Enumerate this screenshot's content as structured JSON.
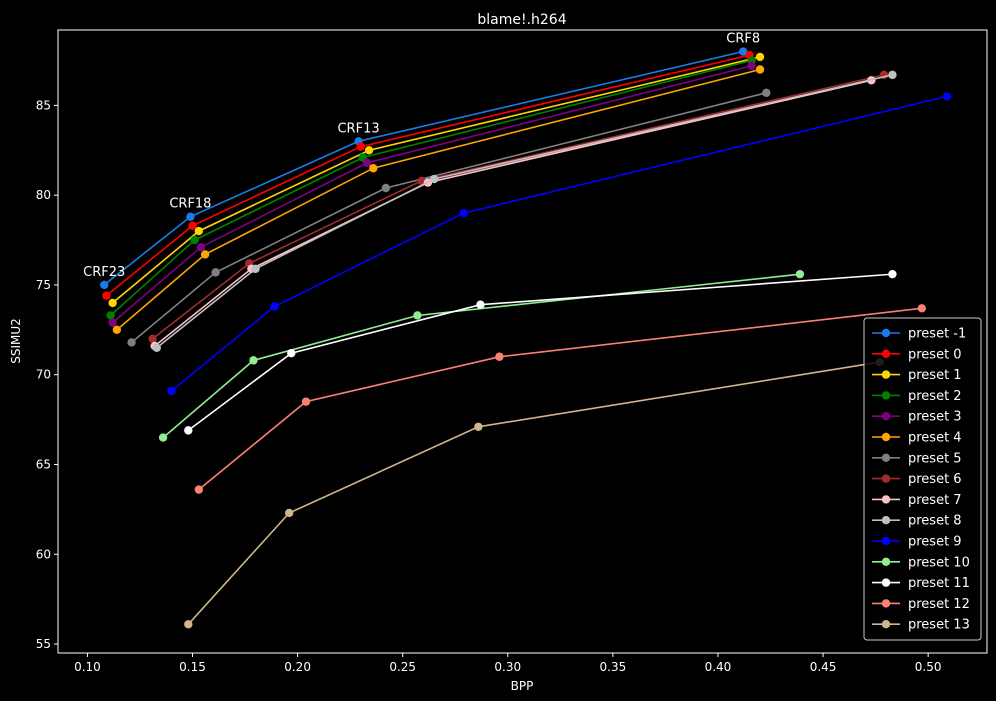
{
  "chart_data": {
    "type": "line",
    "title": "blame!.h264",
    "xlabel": "BPP",
    "ylabel": "SSIMU2",
    "xlim": [
      0.086,
      0.528
    ],
    "ylim": [
      54.5,
      89.2
    ],
    "xticks": [
      "0.10",
      "0.15",
      "0.20",
      "0.25",
      "0.30",
      "0.35",
      "0.40",
      "0.45",
      "0.50"
    ],
    "yticks": [
      "55",
      "60",
      "65",
      "70",
      "75",
      "80",
      "85"
    ],
    "grid": false,
    "legend_position": "lower-right",
    "annotations": [
      {
        "text": "CRF23",
        "x": 0.108,
        "y": 75.0
      },
      {
        "text": "CRF18",
        "x": 0.149,
        "y": 78.8
      },
      {
        "text": "CRF13",
        "x": 0.229,
        "y": 83.0
      },
      {
        "text": "CRF8",
        "x": 0.412,
        "y": 88.0
      }
    ],
    "series": [
      {
        "name": "preset -1",
        "color": "#1a7be6",
        "x": [
          0.108,
          0.149,
          0.229,
          0.412
        ],
        "y": [
          75.0,
          78.8,
          83.0,
          88.0
        ]
      },
      {
        "name": "preset 0",
        "color": "#ff0000",
        "x": [
          0.109,
          0.15,
          0.23,
          0.415
        ],
        "y": [
          74.4,
          78.3,
          82.7,
          87.8
        ]
      },
      {
        "name": "preset 1",
        "color": "#ffd700",
        "x": [
          0.112,
          0.153,
          0.234,
          0.42
        ],
        "y": [
          74.0,
          78.0,
          82.5,
          87.7
        ]
      },
      {
        "name": "preset 2",
        "color": "#008000",
        "x": [
          0.111,
          0.151,
          0.231,
          0.416
        ],
        "y": [
          73.3,
          77.5,
          82.1,
          87.5
        ]
      },
      {
        "name": "preset 3",
        "color": "#800080",
        "x": [
          0.112,
          0.154,
          0.233,
          0.416
        ],
        "y": [
          72.9,
          77.1,
          81.8,
          87.2
        ]
      },
      {
        "name": "preset 4",
        "color": "#ffa500",
        "x": [
          0.114,
          0.156,
          0.236,
          0.42
        ],
        "y": [
          72.5,
          76.7,
          81.5,
          87.0
        ]
      },
      {
        "name": "preset 5",
        "color": "#808080",
        "x": [
          0.121,
          0.161,
          0.242,
          0.423
        ],
        "y": [
          71.8,
          75.7,
          80.4,
          85.7
        ]
      },
      {
        "name": "preset 6",
        "color": "#a52a2a",
        "x": [
          0.131,
          0.177,
          0.259,
          0.479
        ],
        "y": [
          72.0,
          76.2,
          80.8,
          86.7
        ]
      },
      {
        "name": "preset 7",
        "color": "#ffc0cb",
        "x": [
          0.132,
          0.178,
          0.262,
          0.473
        ],
        "y": [
          71.6,
          75.9,
          80.7,
          86.4
        ]
      },
      {
        "name": "preset 8",
        "color": "#c0c0c0",
        "x": [
          0.133,
          0.18,
          0.265,
          0.483
        ],
        "y": [
          71.5,
          75.9,
          80.9,
          86.7
        ]
      },
      {
        "name": "preset 9",
        "color": "#0000ff",
        "x": [
          0.14,
          0.189,
          0.279,
          0.509
        ],
        "y": [
          69.1,
          73.8,
          79.0,
          85.5
        ]
      },
      {
        "name": "preset 10",
        "color": "#90ee90",
        "x": [
          0.136,
          0.179,
          0.257,
          0.439
        ],
        "y": [
          66.5,
          70.8,
          73.3,
          75.6
        ]
      },
      {
        "name": "preset 11",
        "color": "#ffffff",
        "x": [
          0.148,
          0.197,
          0.287,
          0.483
        ],
        "y": [
          66.9,
          71.2,
          73.9,
          75.6
        ]
      },
      {
        "name": "preset 12",
        "color": "#fa8072",
        "x": [
          0.153,
          0.204,
          0.296,
          0.497
        ],
        "y": [
          63.6,
          68.5,
          71.0,
          73.7
        ]
      },
      {
        "name": "preset 13",
        "color": "#d2b48c",
        "x": [
          0.148,
          0.196,
          0.286,
          0.477
        ],
        "y": [
          56.1,
          62.3,
          67.1,
          70.7
        ]
      }
    ]
  }
}
